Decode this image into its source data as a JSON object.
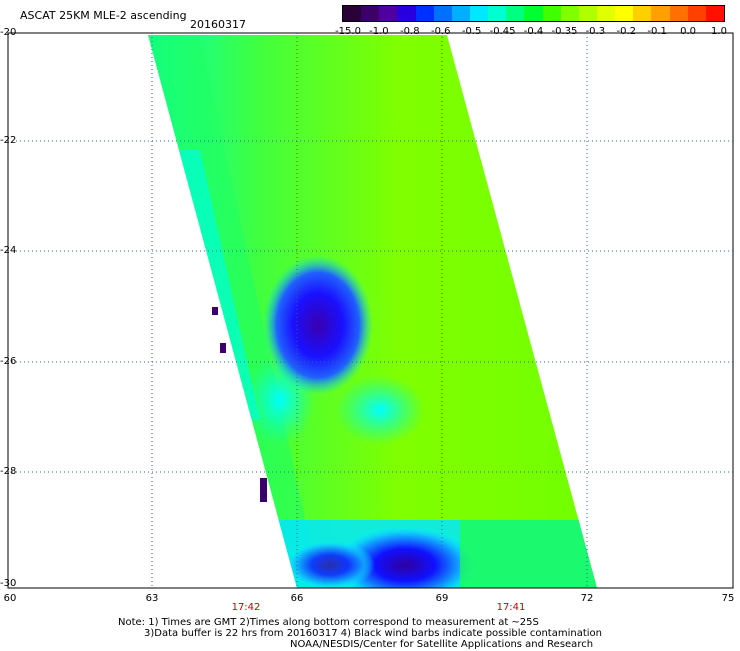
{
  "title": "ASCAT 25KM MLE-2 ascending",
  "date": "20160317",
  "colorbar": {
    "labels": [
      "-15.0",
      "-1.0",
      "-0.8",
      "-0.6",
      "-0.5",
      "-0.45",
      "-0.4",
      "-0.35",
      "-0.3",
      "-0.2",
      "-0.1",
      "0.0",
      "1.0"
    ],
    "colors": [
      "#2a0038",
      "#3c0066",
      "#5000a0",
      "#2800e0",
      "#0030ff",
      "#0070ff",
      "#00b0ff",
      "#00e8ff",
      "#00ffd0",
      "#00ff80",
      "#00ff30",
      "#40ff00",
      "#80ff00",
      "#b0ff00",
      "#e0ff00",
      "#ffff00",
      "#ffd000",
      "#ffa000",
      "#ff7000",
      "#ff4000",
      "#ff1000"
    ]
  },
  "axes": {
    "y_ticks": [
      "-20",
      "-22",
      "-24",
      "-26",
      "-28",
      "-30"
    ],
    "x_ticks": [
      "60",
      "63",
      "66",
      "69",
      "72",
      "75"
    ]
  },
  "times": [
    "17:42",
    "17:41"
  ],
  "notes": [
    "Note: 1) Times are GMT 2)Times along bottom correspond to measurement at ~25S",
    "3)Data buffer is 22 hrs from 20160317 4) Black wind barbs indicate possible contamination",
    "NOAA/NESDIS/Center for Satellite Applications and Research"
  ]
}
